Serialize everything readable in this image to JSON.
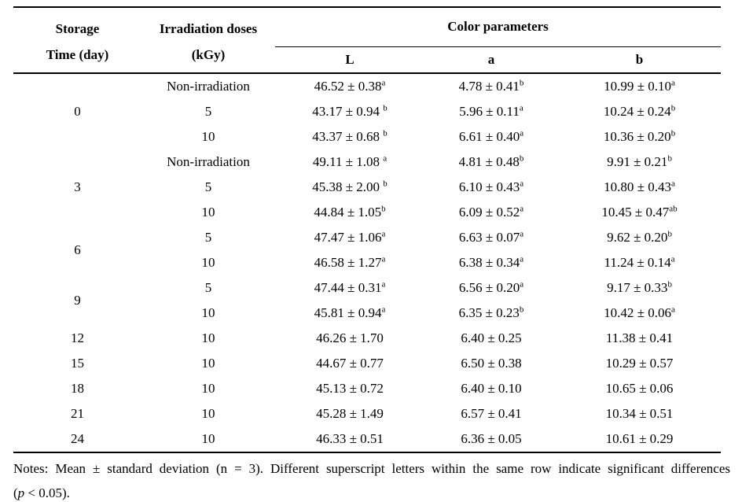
{
  "header": {
    "col1_line1": "Storage",
    "col1_line2": "Time (day)",
    "col2_line1": "Irradiation doses",
    "col2_line2": "(kGy)",
    "group": "Color parameters",
    "sub": [
      "L",
      "a",
      "b"
    ]
  },
  "table": {
    "rows": [
      {
        "group": "0",
        "span": 3,
        "dose": "Non-irradiation",
        "L": {
          "v": "46.52 ± 0.38",
          "s": "a"
        },
        "a": {
          "v": "4.78 ± 0.41",
          "s": "b"
        },
        "b": {
          "v": "10.99 ± 0.10",
          "s": "a"
        }
      },
      {
        "dose": "5",
        "L": {
          "v": "43.17 ± 0.94 ",
          "s": "b"
        },
        "a": {
          "v": "5.96 ± 0.11",
          "s": "a"
        },
        "b": {
          "v": "10.24 ± 0.24",
          "s": "b"
        }
      },
      {
        "dose": "10",
        "L": {
          "v": "43.37 ± 0.68 ",
          "s": "b"
        },
        "a": {
          "v": "6.61 ± 0.40",
          "s": "a"
        },
        "b": {
          "v": "10.36 ± 0.20",
          "s": "b"
        }
      },
      {
        "group": "3",
        "span": 3,
        "dose": "Non-irradiation",
        "L": {
          "v": "49.11 ± 1.08 ",
          "s": "a"
        },
        "a": {
          "v": "4.81 ± 0.48",
          "s": "b"
        },
        "b": {
          "v": "9.91 ± 0.21",
          "s": "b"
        }
      },
      {
        "dose": "5",
        "L": {
          "v": "45.38 ± 2.00 ",
          "s": "b"
        },
        "a": {
          "v": "6.10 ± 0.43",
          "s": "a"
        },
        "b": {
          "v": "10.80 ± 0.43",
          "s": "a"
        }
      },
      {
        "dose": "10",
        "L": {
          "v": "44.84 ± 1.05",
          "s": "b"
        },
        "a": {
          "v": "6.09 ± 0.52",
          "s": "a"
        },
        "b": {
          "v": "10.45 ± 0.47",
          "s": "ab"
        }
      },
      {
        "group": "6",
        "span": 2,
        "dose": "5",
        "L": {
          "v": "47.47 ± 1.06",
          "s": "a"
        },
        "a": {
          "v": "6.63 ± 0.07",
          "s": "a"
        },
        "b": {
          "v": "9.62 ± 0.20",
          "s": "b"
        }
      },
      {
        "dose": "10",
        "L": {
          "v": "46.58 ± 1.27",
          "s": "a"
        },
        "a": {
          "v": "6.38 ± 0.34",
          "s": "a"
        },
        "b": {
          "v": "11.24 ± 0.14",
          "s": "a"
        }
      },
      {
        "group": "9",
        "span": 2,
        "dose": "5",
        "L": {
          "v": "47.44 ± 0.31",
          "s": "a"
        },
        "a": {
          "v": "6.56 ± 0.20",
          "s": "a"
        },
        "b": {
          "v": "9.17 ± 0.33",
          "s": "b"
        }
      },
      {
        "dose": "10",
        "L": {
          "v": "45.81 ± 0.94",
          "s": "a"
        },
        "a": {
          "v": "6.35 ± 0.23",
          "s": "b"
        },
        "b": {
          "v": "10.42 ± 0.06",
          "s": "a"
        }
      },
      {
        "group": "12",
        "span": 1,
        "dose": "10",
        "L": {
          "v": "46.26 ± 1.70",
          "s": ""
        },
        "a": {
          "v": "6.40 ± 0.25",
          "s": ""
        },
        "b": {
          "v": "11.38 ± 0.41",
          "s": ""
        }
      },
      {
        "group": "15",
        "span": 1,
        "dose": "10",
        "L": {
          "v": "44.67 ± 0.77",
          "s": ""
        },
        "a": {
          "v": "6.50 ± 0.38",
          "s": ""
        },
        "b": {
          "v": "10.29 ± 0.57",
          "s": ""
        }
      },
      {
        "group": "18",
        "span": 1,
        "dose": "10",
        "L": {
          "v": "45.13 ± 0.72",
          "s": ""
        },
        "a": {
          "v": "6.40 ± 0.10",
          "s": ""
        },
        "b": {
          "v": "10.65 ± 0.06",
          "s": ""
        }
      },
      {
        "group": "21",
        "span": 1,
        "dose": "10",
        "L": {
          "v": "45.28 ± 1.49",
          "s": ""
        },
        "a": {
          "v": "6.57 ± 0.41",
          "s": ""
        },
        "b": {
          "v": "10.34 ± 0.51",
          "s": ""
        }
      },
      {
        "group": "24",
        "span": 1,
        "dose": "10",
        "L": {
          "v": "46.33 ± 0.51",
          "s": ""
        },
        "a": {
          "v": "6.36 ± 0.05",
          "s": ""
        },
        "b": {
          "v": "10.61 ± 0.29",
          "s": ""
        }
      }
    ]
  },
  "notes": {
    "line1": "Notes: Mean ± standard deviation (n = 3). Different superscript letters within the same row indicate significant differences",
    "p_prefix": "(",
    "p_symbol": "p",
    "p_suffix": " < 0.05)."
  }
}
